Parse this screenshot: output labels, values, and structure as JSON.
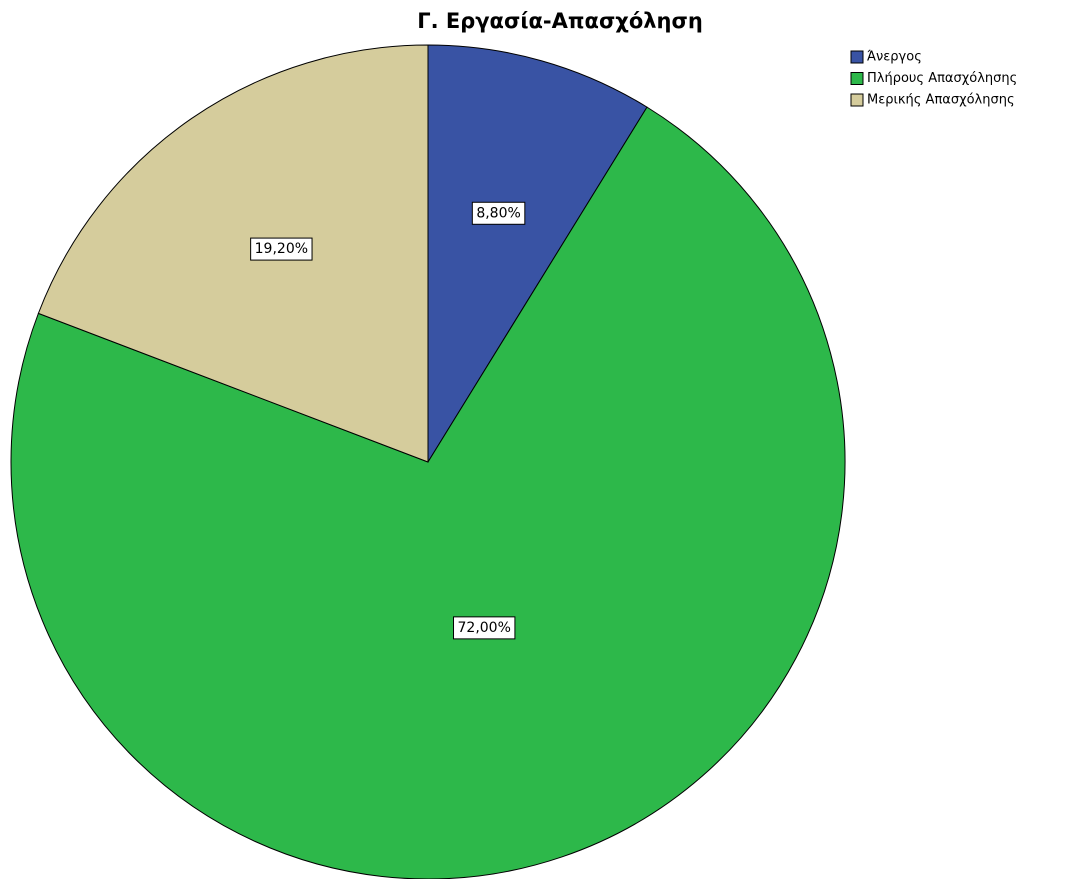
{
  "chart_data": {
    "type": "pie",
    "title": "Γ. Εργασία-Απασχόληση",
    "categories": [
      "Άνεργος",
      "Πλήρους Απασχόλησης",
      "Μερικής Απασχόλησης"
    ],
    "values": [
      8.8,
      72,
      19.2
    ],
    "value_labels": [
      "8,80%",
      "72,00%",
      "19,20%"
    ],
    "colors": [
      "#3953a4",
      "#2db84a",
      "#d5cc9c"
    ],
    "legend": "upper right"
  }
}
